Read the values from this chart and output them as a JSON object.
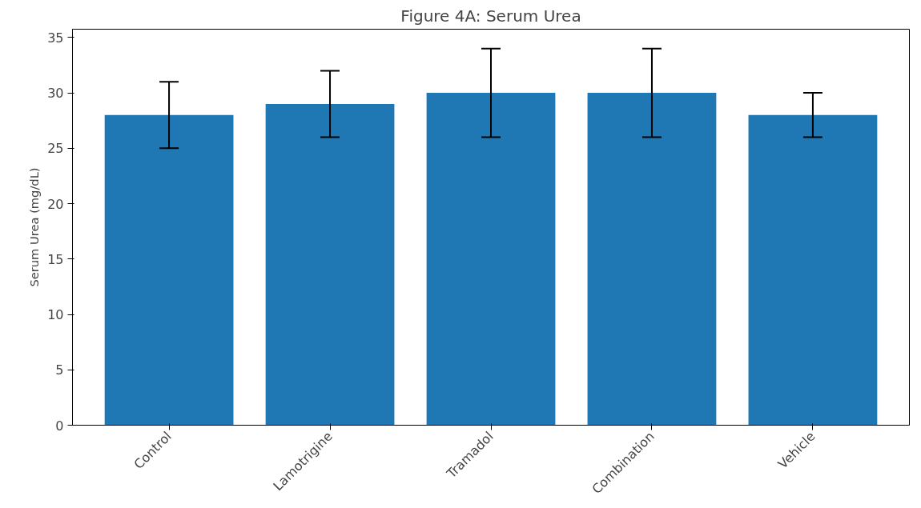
{
  "chart_data": {
    "type": "bar",
    "title": "Figure 4A: Serum Urea",
    "ylabel": "Serum Urea (mg/dL)",
    "categories": [
      "Control",
      "Lamotrigine",
      "Tramadol",
      "Combination",
      "Vehicle"
    ],
    "values": [
      28,
      29,
      30,
      30,
      28
    ],
    "color": "#1f77b4",
    "errors": [
      3,
      3,
      4,
      4,
      2
    ],
    "ylim": [
      0,
      35.75
    ],
    "yticks": [
      0,
      5,
      10,
      15,
      20,
      25,
      30,
      35
    ]
  }
}
